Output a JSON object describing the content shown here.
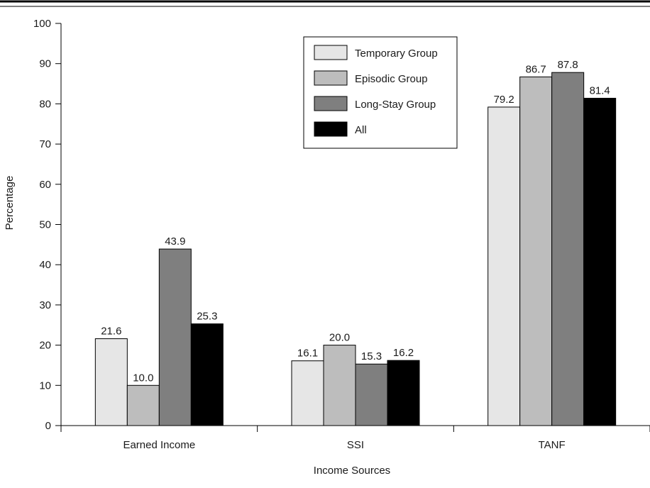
{
  "chart_data": {
    "type": "bar",
    "title": "",
    "xlabel": "Income Sources",
    "ylabel": "Percentage",
    "ylim": [
      0,
      100
    ],
    "yticks": [
      0,
      10,
      20,
      30,
      40,
      50,
      60,
      70,
      80,
      90,
      100
    ],
    "categories": [
      "Earned Income",
      "SSI",
      "TANF"
    ],
    "series": [
      {
        "name": "Temporary Group",
        "values": [
          21.6,
          16.1,
          79.2
        ],
        "labels": [
          "21.6",
          "16.1",
          "79.2"
        ],
        "color": "#e6e6e6"
      },
      {
        "name": "Episodic Group",
        "values": [
          10.0,
          20.0,
          86.7
        ],
        "labels": [
          "10.0",
          "20.0",
          "86.7"
        ],
        "color": "#bdbdbd"
      },
      {
        "name": "Long-Stay Group",
        "values": [
          43.9,
          15.3,
          87.8
        ],
        "labels": [
          "43.9",
          "15.3",
          "87.8"
        ],
        "color": "#7f7f7f"
      },
      {
        "name": "All",
        "values": [
          25.3,
          16.2,
          81.4
        ],
        "labels": [
          "25.3",
          "16.2",
          "81.4"
        ],
        "color": "#000000"
      }
    ],
    "legend_position": "top-center",
    "grid": false
  }
}
